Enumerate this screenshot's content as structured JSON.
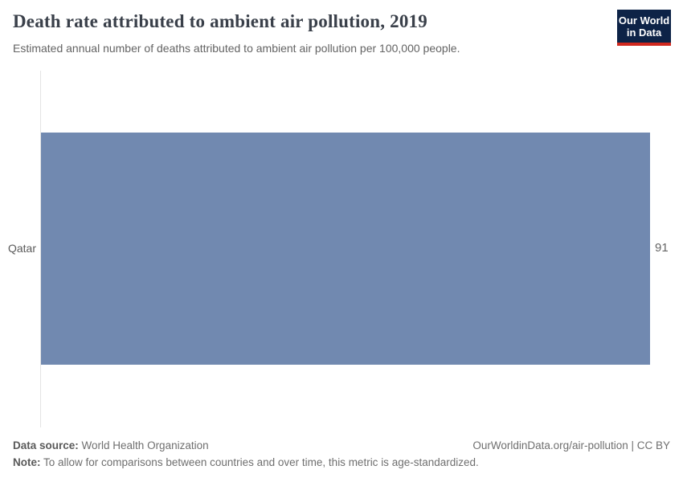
{
  "header": {
    "title": "Death rate attributed to ambient air pollution, 2019",
    "subtitle": "Estimated annual number of deaths attributed to ambient air pollution per 100,000 people."
  },
  "logo": {
    "line1": "Our World",
    "line2": "in Data",
    "bg_color": "#0d2347",
    "accent_color": "#d0281e"
  },
  "chart_data": {
    "type": "bar",
    "orientation": "horizontal",
    "title": "Death rate attributed to ambient air pollution, 2019",
    "categories": [
      "Qatar"
    ],
    "values": [
      91
    ],
    "value_labels": [
      "91"
    ],
    "xlabel": "",
    "ylabel": "",
    "xlim": [
      0,
      91
    ],
    "grid": false,
    "legend": false,
    "bar_color": "#7189b0",
    "axis_line_color": "#e4e4e4"
  },
  "footer": {
    "data_source_label": "Data source:",
    "data_source_value": " World Health Organization",
    "note_label": "Note:",
    "note_value": " To allow for comparisons between countries and over time, this metric is age-standardized.",
    "link": "OurWorldinData.org/air-pollution | CC BY"
  }
}
